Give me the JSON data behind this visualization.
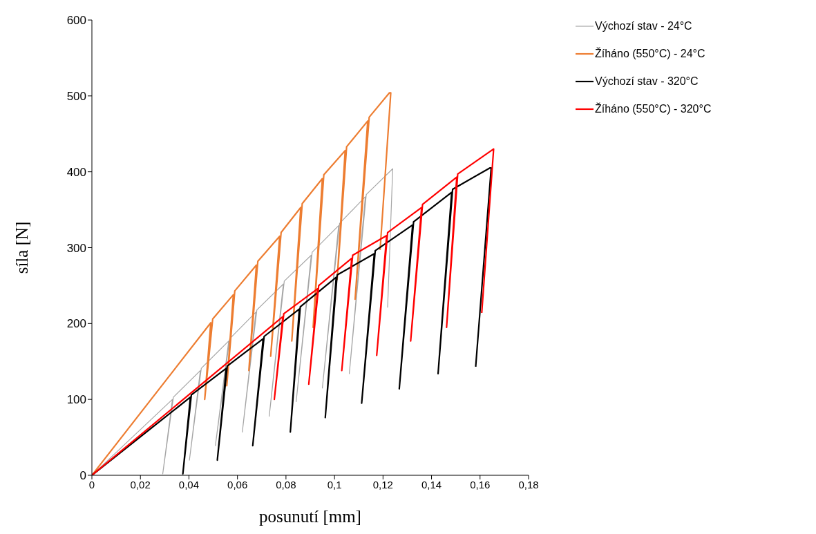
{
  "chart_data": {
    "type": "line",
    "xlabel": "posunutí [mm]",
    "ylabel": "síla [N]",
    "xlim": [
      0,
      0.18
    ],
    "xticks": [
      0,
      {
        "value": 0.02,
        "label": "0,02"
      },
      {
        "value": 0.04,
        "label": "0,04"
      },
      {
        "value": 0.06,
        "label": "0,06"
      },
      {
        "value": 0.08,
        "label": "0,08"
      },
      {
        "value": 0.1,
        "label": "0,1"
      },
      {
        "value": 0.12,
        "label": "0,12"
      },
      {
        "value": 0.14,
        "label": "0,14"
      },
      {
        "value": 0.16,
        "label": "0,16"
      },
      {
        "value": 0.18,
        "label": "0,18"
      }
    ],
    "ylim": [
      0,
      600
    ],
    "yticks": [
      0,
      100,
      200,
      300,
      400,
      500,
      600
    ],
    "legend": "top right",
    "series": [
      {
        "name": "Výchozí stav - 24°C",
        "color": "#a6a6a6",
        "x": [
          0,
          0.0332,
          0.0292,
          0.0336,
          0.0447,
          0.0402,
          0.0451,
          0.0564,
          0.0509,
          0.0568,
          0.0676,
          0.062,
          0.068,
          0.0789,
          0.0731,
          0.0793,
          0.0904,
          0.0842,
          0.0908,
          0.1017,
          0.095,
          0.1021,
          0.1127,
          0.1061,
          0.1131,
          0.124,
          0.1219
        ],
        "values": [
          0,
          100,
          2,
          103,
          138,
          20,
          141,
          177,
          39,
          180,
          215,
          57,
          218,
          252,
          78,
          256,
          290,
          97,
          294,
          329,
          115,
          332,
          367,
          134,
          370,
          404,
          221
        ]
      },
      {
        "name": "Žíháno (550°C) - 24°C",
        "color": "#ed7d31",
        "x": [
          0,
          0.049,
          0.0465,
          0.0498,
          0.0583,
          0.0556,
          0.0589,
          0.0678,
          0.0647,
          0.0684,
          0.0774,
          0.0737,
          0.078,
          0.0861,
          0.0824,
          0.0867,
          0.095,
          0.0912,
          0.0956,
          0.1044,
          0.1011,
          0.105,
          0.1137,
          0.1085,
          0.1143,
          0.1226,
          0.1232,
          0.1188
        ],
        "values": [
          0,
          201,
          100,
          206,
          238,
          118,
          243,
          277,
          138,
          282,
          315,
          157,
          320,
          353,
          177,
          358,
          391,
          195,
          396,
          428,
          258,
          433,
          467,
          232,
          472,
          504,
          504,
          297
        ]
      },
      {
        "name": "Výchozí stav - 320°C",
        "color": "#000000",
        "x": [
          0,
          0.0406,
          0.0375,
          0.041,
          0.0554,
          0.0517,
          0.0558,
          0.0706,
          0.0663,
          0.071,
          0.0855,
          0.0818,
          0.0859,
          0.1007,
          0.0962,
          0.1011,
          0.1164,
          0.1112,
          0.1168,
          0.1322,
          0.1267,
          0.1326,
          0.1483,
          0.1427,
          0.1487,
          0.164,
          0.1646,
          0.1582
        ],
        "values": [
          0,
          103,
          2,
          106,
          141,
          20,
          144,
          180,
          39,
          183,
          219,
          57,
          222,
          261,
          76,
          264,
          292,
          95,
          296,
          330,
          114,
          334,
          373,
          134,
          377,
          405,
          405,
          143
        ]
      },
      {
        "name": "Žíháno (550°C) - 320°C",
        "color": "#ff0000",
        "x": [
          0,
          0.0787,
          0.0752,
          0.0791,
          0.0931,
          0.0894,
          0.0935,
          0.1071,
          0.103,
          0.1075,
          0.1215,
          0.1174,
          0.1219,
          0.1359,
          0.1314,
          0.1363,
          0.1504,
          0.1462,
          0.1508,
          0.1656,
          0.1607
        ],
        "values": [
          0,
          209,
          100,
          213,
          246,
          120,
          250,
          286,
          138,
          290,
          316,
          158,
          320,
          353,
          177,
          357,
          393,
          195,
          397,
          430,
          214
        ]
      }
    ]
  }
}
